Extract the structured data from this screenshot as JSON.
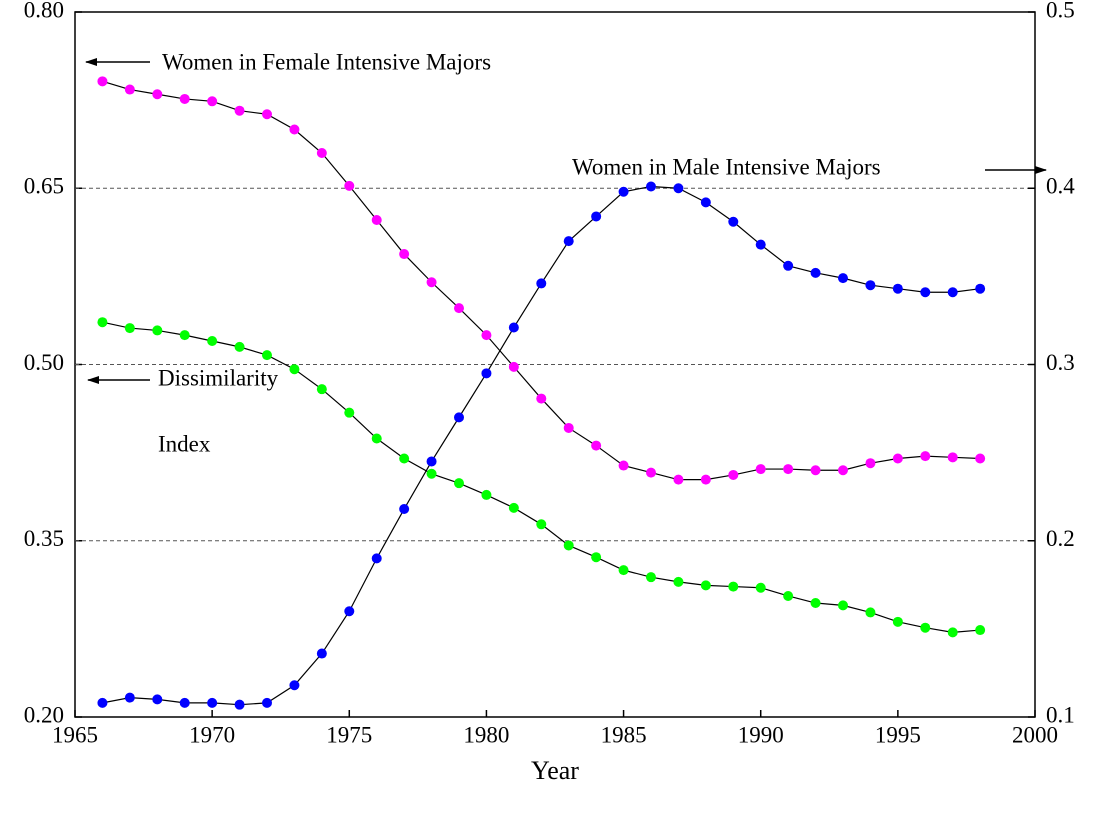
{
  "chart_data": {
    "type": "line",
    "xlabel": "Year",
    "x": [
      1966,
      1967,
      1968,
      1969,
      1970,
      1971,
      1972,
      1973,
      1974,
      1975,
      1976,
      1977,
      1978,
      1979,
      1980,
      1981,
      1982,
      1983,
      1984,
      1985,
      1986,
      1987,
      1988,
      1989,
      1990,
      1991,
      1992,
      1993,
      1994,
      1995,
      1996,
      1997,
      1998
    ],
    "xlim": [
      1965,
      2000
    ],
    "xticks": [
      1965,
      1970,
      1975,
      1980,
      1985,
      1990,
      1995,
      2000
    ],
    "ylim": [
      0.2,
      0.8
    ],
    "yticks": [
      {
        "value": 0.2,
        "label": "0.20"
      },
      0.35,
      {
        "value": 0.5,
        "label": "0.50"
      },
      0.65,
      {
        "value": 0.8,
        "label": "0.80"
      }
    ],
    "y2lim": [
      0.1,
      0.5
    ],
    "y2ticks": [
      0.1,
      0.2,
      0.3,
      0.4,
      0.5
    ],
    "grid": true,
    "line_color": "#000000",
    "series": [
      {
        "color": "#ff00ff",
        "values": [
          0.741,
          0.734,
          0.73,
          0.726,
          0.724,
          0.716,
          0.713,
          0.7,
          0.68,
          0.652,
          0.623,
          0.594,
          0.57,
          0.548,
          0.525,
          0.498,
          0.471,
          0.446,
          0.431,
          0.414,
          0.408,
          0.402,
          0.402,
          0.406,
          0.411,
          0.411,
          0.41,
          0.41,
          0.416,
          0.42,
          0.422,
          0.421,
          0.42
        ]
      },
      {
        "color": "#00ff00",
        "values": [
          0.536,
          0.531,
          0.529,
          0.525,
          0.52,
          0.515,
          0.508,
          0.496,
          0.479,
          0.459,
          0.437,
          0.42,
          0.407,
          0.399,
          0.389,
          0.378,
          0.364,
          0.346,
          0.336,
          0.325,
          0.319,
          0.315,
          0.312,
          0.311,
          0.31,
          0.303,
          0.297,
          0.295,
          0.289,
          0.281,
          0.276,
          0.272,
          0.274
        ]
      },
      {
        "color": "#0000ff",
        "axis": "y2",
        "values": [
          0.108,
          0.111,
          0.11,
          0.108,
          0.108,
          0.107,
          0.108,
          0.118,
          0.136,
          0.16,
          0.19,
          0.218,
          0.245,
          0.27,
          0.295,
          0.321,
          0.346,
          0.37,
          0.384,
          0.398,
          0.401,
          0.4,
          0.392,
          0.381,
          0.368,
          0.356,
          0.352,
          0.349,
          0.345,
          0.343,
          0.341,
          0.341,
          0.343
        ]
      }
    ],
    "annotations": [
      "Women in Female Intensive Majors",
      "Women in Male Intensive Majors",
      "Dissimilarity",
      "Index"
    ]
  }
}
